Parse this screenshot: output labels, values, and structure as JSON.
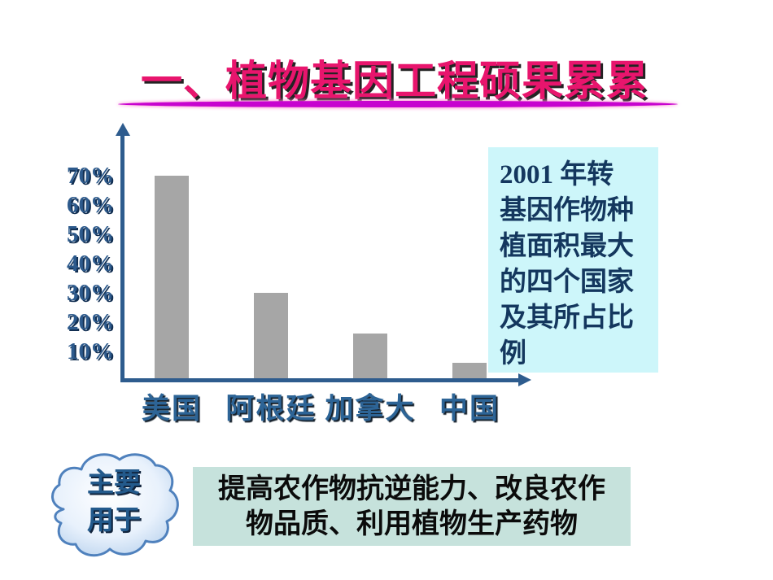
{
  "title": {
    "text": "一、植物基因工程硕果累累"
  },
  "note_box": {
    "text": "2001 年转基因作物种植面积最大的四个国家及其所占比例",
    "lines": [
      "2001 年转",
      "基因作物种",
      "植面积最大",
      "的四个国家",
      "及其所占比",
      "例"
    ]
  },
  "cloud": {
    "text": "主要用于",
    "lines": [
      "主要",
      "用于"
    ]
  },
  "bottom_box": {
    "text": "提高农作物抗逆能力、改良农作物品质、利用植物生产药物",
    "lines": [
      "提高农作物抗逆能力、改良农作",
      "物品质、利用植物生产药物"
    ]
  },
  "chart_data": {
    "type": "bar",
    "categories": [
      "美国",
      "阿根廷",
      "加拿大",
      "中国"
    ],
    "values": [
      70,
      30,
      16,
      6
    ],
    "unit": "%",
    "yticks": [
      70,
      60,
      50,
      40,
      30,
      20,
      10
    ],
    "ytick_labels": [
      "70%",
      "60%",
      "50%",
      "40%",
      "30%",
      "20%",
      "10%"
    ],
    "ylim": [
      0,
      80
    ],
    "title": "",
    "xlabel": "",
    "ylabel": "",
    "grid": false,
    "legend": false,
    "bar_color": "#a6a6a6",
    "axis_color": "#2e5c8e"
  },
  "colors": {
    "title_pink": "#e8156d",
    "underline_magenta": "#c703cf",
    "note_box_bg": "#cdf6fa",
    "note_text_navy": "#14375e",
    "bottom_box_bg": "#c6e2dc",
    "bar_gray": "#a6a6a6",
    "axis_blue": "#2e5c8e",
    "label_blue": "#2d6496",
    "cloud_border_blue": "#4f81bd"
  }
}
